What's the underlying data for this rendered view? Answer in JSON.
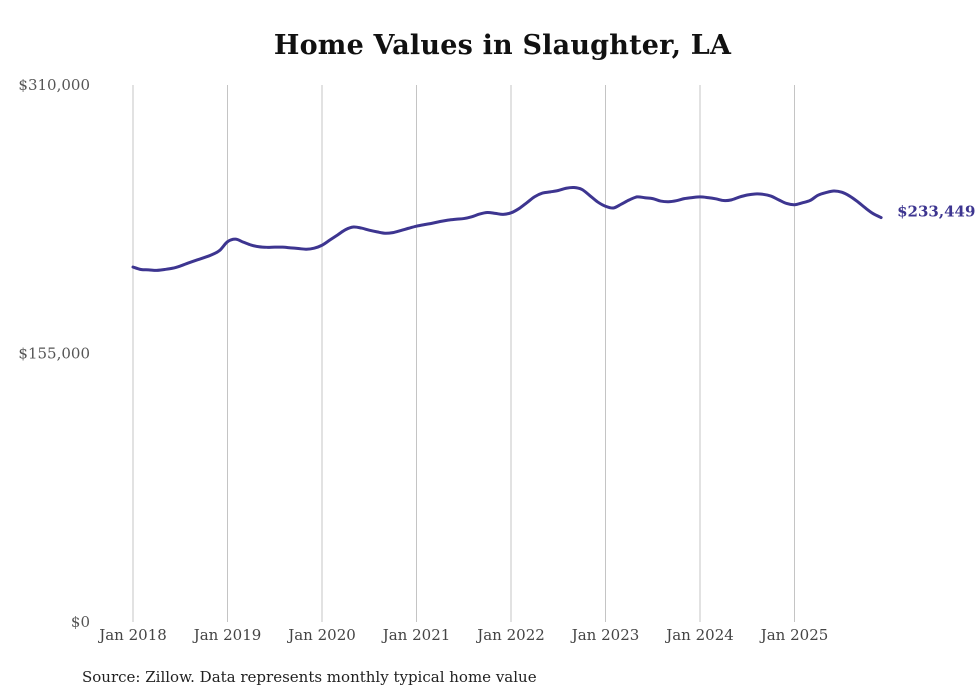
{
  "chart_data": {
    "type": "line",
    "title": "Home Values in Slaughter, LA",
    "xlabel": "",
    "ylabel": "",
    "ylim": [
      0,
      310000
    ],
    "y_ticks": [
      0,
      155000,
      310000
    ],
    "y_tick_labels": [
      "$0",
      "$155,000",
      "$310,000"
    ],
    "x_tick_labels": [
      "Jan 2018",
      "Jan 2019",
      "Jan 2020",
      "Jan 2021",
      "Jan 2022",
      "Jan 2023",
      "Jan 2024",
      "Jan 2025"
    ],
    "x_start": "Jan 2018",
    "x_end": "Nov 2025",
    "grid": "vertical",
    "line_color": "#3d3590",
    "series": [
      {
        "name": "Typical home value",
        "values": [
          204900,
          203500,
          203300,
          203000,
          203500,
          204200,
          205500,
          207200,
          208800,
          210300,
          212000,
          214500,
          219500,
          221000,
          219300,
          217600,
          216600,
          216300,
          216400,
          216400,
          216000,
          215600,
          215200,
          215800,
          217500,
          220500,
          223500,
          226500,
          228000,
          227400,
          226200,
          225200,
          224400,
          224800,
          226000,
          227300,
          228500,
          229400,
          230200,
          231200,
          232000,
          232500,
          232900,
          233900,
          235500,
          236400,
          235900,
          235300,
          236200,
          238600,
          242000,
          245500,
          247600,
          248300,
          249100,
          250400,
          250800,
          249700,
          246200,
          242500,
          240000,
          239000,
          241200,
          243600,
          245400,
          244900,
          244400,
          243000,
          242600,
          243200,
          244400,
          245000,
          245400,
          245000,
          244300,
          243300,
          243700,
          245300,
          246500,
          247100,
          246900,
          245900,
          243700,
          241600,
          240900,
          242000,
          243400,
          246400,
          247900,
          248800,
          248100,
          245900,
          242700,
          239000,
          235700,
          233449
        ]
      }
    ],
    "end_label": "$233,449",
    "source_note": "Source: Zillow. Data represents monthly typical home value"
  }
}
